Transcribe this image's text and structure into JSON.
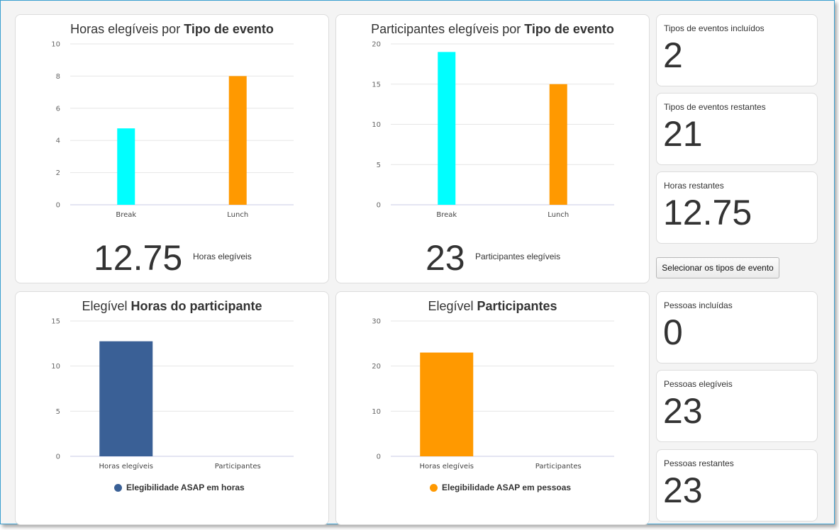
{
  "charts": {
    "hours_by_type": {
      "title_prefix": "Horas elegíveis por ",
      "title_bold": "Tipo de evento",
      "total_value": "12.75",
      "total_label": "Horas elegíveis"
    },
    "participants_by_type": {
      "title_prefix": "Participantes elegíveis por ",
      "title_bold": "Tipo de evento",
      "total_value": "23",
      "total_label": "Participantes elegíveis"
    },
    "participant_hours": {
      "title_prefix": "Elegível ",
      "title_bold": "Horas do participante",
      "legend": "Elegibilidade ASAP em horas"
    },
    "participants": {
      "title_prefix": "Elegível ",
      "title_bold": "Participantes",
      "legend": "Elegibilidade ASAP em pessoas"
    }
  },
  "stats": {
    "event_types_included": {
      "label": "Tipos de eventos incluídos",
      "value": "2"
    },
    "event_types_remaining": {
      "label": "Tipos de eventos restantes",
      "value": "21"
    },
    "hours_remaining": {
      "label": "Horas restantes",
      "value": "12.75"
    },
    "people_included": {
      "label": "Pessoas incluídas",
      "value": "0"
    },
    "people_eligible": {
      "label": "Pessoas elegíveis",
      "value": "23"
    },
    "people_remaining": {
      "label": "Pessoas restantes",
      "value": "23"
    }
  },
  "select_button_label": "Selecionar os tipos de evento",
  "chart_data": [
    {
      "type": "bar",
      "categories": [
        "Break",
        "Lunch"
      ],
      "values": [
        4.75,
        8
      ],
      "colors": [
        "#00ffff",
        "#ff9900"
      ],
      "ylim": [
        0,
        10
      ],
      "yticks": [
        0,
        2,
        4,
        6,
        8,
        10
      ]
    },
    {
      "type": "bar",
      "categories": [
        "Break",
        "Lunch"
      ],
      "values": [
        19,
        15
      ],
      "colors": [
        "#00ffff",
        "#ff9900"
      ],
      "ylim": [
        0,
        20
      ],
      "yticks": [
        0,
        5,
        10,
        15,
        20
      ]
    },
    {
      "type": "bar",
      "categories": [
        "Horas elegíveis",
        "Participantes"
      ],
      "series": [
        {
          "name": "Elegibilidade ASAP em horas",
          "values": [
            12.75,
            0
          ]
        }
      ],
      "colors": [
        "#3a6096"
      ],
      "ylim": [
        0,
        15
      ],
      "yticks": [
        0,
        5,
        10,
        15
      ]
    },
    {
      "type": "bar",
      "categories": [
        "Horas elegíveis",
        "Participantes"
      ],
      "series": [
        {
          "name": "Elegibilidade ASAP em pessoas",
          "values": [
            23,
            0
          ]
        }
      ],
      "colors": [
        "#ff9900"
      ],
      "ylim": [
        0,
        30
      ],
      "yticks": [
        0,
        10,
        20,
        30
      ]
    }
  ]
}
